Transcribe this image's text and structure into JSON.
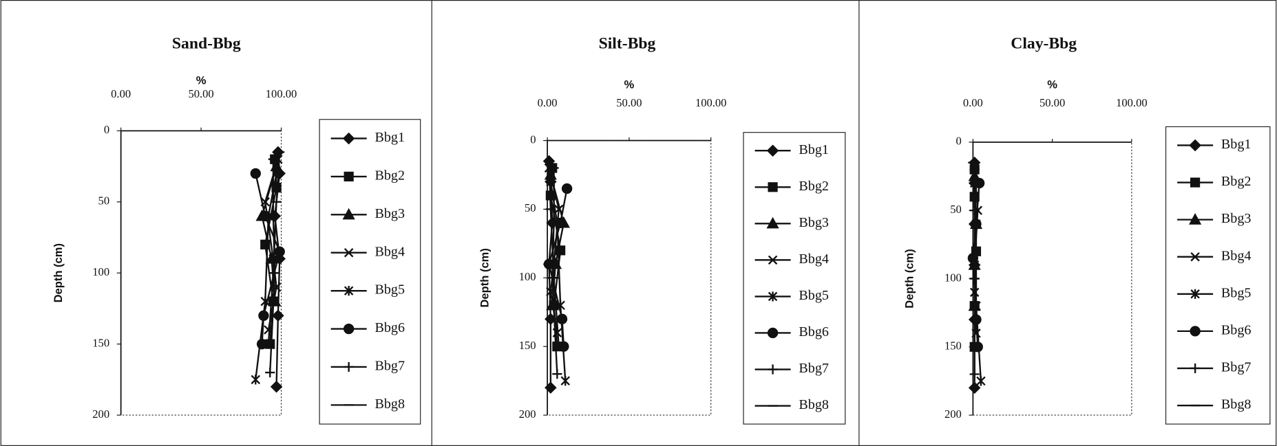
{
  "chart_data": [
    {
      "type": "line",
      "title": "Sand-Bbg",
      "x_label": "%",
      "y_label": "Depth (cm)",
      "x_axis_position": "top",
      "y_reversed": true,
      "xlim": [
        0,
        100
      ],
      "xticks": [
        {
          "value": 0,
          "label": "0.00"
        },
        {
          "value": 50,
          "label": "50.00"
        },
        {
          "value": 100,
          "label": "100.00"
        }
      ],
      "ylim": [
        0,
        200
      ],
      "yticks": [
        0,
        50,
        100,
        150,
        200
      ],
      "series": [
        {
          "name": "Bbg1",
          "color": "#111111",
          "marker": "diamond",
          "x": [
            98,
            99,
            96,
            99,
            98,
            97
          ],
          "y": [
            15,
            30,
            60,
            90,
            130,
            180
          ]
        },
        {
          "name": "Bbg2",
          "color": "#111111",
          "marker": "square",
          "x": [
            96,
            97,
            90,
            95,
            93
          ],
          "y": [
            20,
            40,
            80,
            120,
            150
          ]
        },
        {
          "name": "Bbg3",
          "color": "#111111",
          "marker": "triangle",
          "x": [
            97,
            88,
            94,
            96
          ],
          "y": [
            25,
            60,
            90,
            120
          ]
        },
        {
          "name": "Bbg4",
          "color": "#111111",
          "marker": "x",
          "x": [
            98,
            90,
            95,
            97,
            92
          ],
          "y": [
            20,
            50,
            90,
            110,
            140
          ]
        },
        {
          "name": "Bbg5",
          "color": "#111111",
          "marker": "asterisk",
          "x": [
            97,
            92,
            90,
            84
          ],
          "y": [
            30,
            60,
            120,
            175
          ]
        },
        {
          "name": "Bbg6",
          "color": "#111111",
          "marker": "circle",
          "x": [
            84,
            90,
            99,
            89,
            88
          ],
          "y": [
            30,
            60,
            85,
            130,
            150
          ]
        },
        {
          "name": "Bbg7",
          "color": "#111111",
          "marker": "plus",
          "x": [
            95,
            95,
            96,
            93
          ],
          "y": [
            20,
            60,
            100,
            170
          ]
        },
        {
          "name": "Bbg8",
          "color": "#111111",
          "marker": "dash",
          "x": [
            99,
            97,
            95,
            92
          ],
          "y": [
            15,
            50,
            100,
            150
          ]
        }
      ]
    },
    {
      "type": "line",
      "title": "Silt-Bbg",
      "x_label": "%",
      "y_label": "Depth (cm)",
      "x_axis_position": "top",
      "y_reversed": true,
      "xlim": [
        0,
        100
      ],
      "xticks": [
        {
          "value": 0,
          "label": "0.00"
        },
        {
          "value": 50,
          "label": "50.00"
        },
        {
          "value": 100,
          "label": "100.00"
        }
      ],
      "ylim": [
        0,
        200
      ],
      "yticks": [
        0,
        50,
        100,
        150,
        200
      ],
      "series": [
        {
          "name": "Bbg1",
          "color": "#111111",
          "marker": "diamond",
          "x": [
            1,
            2,
            3,
            1,
            2,
            2
          ],
          "y": [
            15,
            30,
            60,
            90,
            130,
            180
          ]
        },
        {
          "name": "Bbg2",
          "color": "#111111",
          "marker": "square",
          "x": [
            3,
            2,
            8,
            4,
            6
          ],
          "y": [
            20,
            40,
            80,
            120,
            150
          ]
        },
        {
          "name": "Bbg3",
          "color": "#111111",
          "marker": "triangle",
          "x": [
            2,
            10,
            5,
            3
          ],
          "y": [
            25,
            60,
            90,
            120
          ]
        },
        {
          "name": "Bbg4",
          "color": "#111111",
          "marker": "x",
          "x": [
            1,
            7,
            4,
            2,
            6
          ],
          "y": [
            20,
            50,
            90,
            110,
            140
          ]
        },
        {
          "name": "Bbg5",
          "color": "#111111",
          "marker": "asterisk",
          "x": [
            2,
            6,
            8,
            11
          ],
          "y": [
            30,
            60,
            120,
            175
          ]
        },
        {
          "name": "Bbg6",
          "color": "#111111",
          "marker": "circle",
          "x": [
            12,
            8,
            1,
            9,
            10
          ],
          "y": [
            35,
            60,
            90,
            130,
            150
          ]
        },
        {
          "name": "Bbg7",
          "color": "#111111",
          "marker": "plus",
          "x": [
            4,
            4,
            3,
            6
          ],
          "y": [
            20,
            60,
            100,
            170
          ]
        },
        {
          "name": "Bbg8",
          "color": "#111111",
          "marker": "dash",
          "x": [
            1,
            2,
            4,
            7
          ],
          "y": [
            15,
            50,
            100,
            150
          ]
        }
      ]
    },
    {
      "type": "line",
      "title": "Clay-Bbg",
      "x_label": "%",
      "y_label": "Depth (cm)",
      "x_axis_position": "top",
      "y_reversed": true,
      "xlim": [
        0,
        100
      ],
      "xticks": [
        {
          "value": 0,
          "label": "0.00"
        },
        {
          "value": 50,
          "label": "50.00"
        },
        {
          "value": 100,
          "label": "100.00"
        }
      ],
      "ylim": [
        0,
        200
      ],
      "yticks": [
        0,
        50,
        100,
        150,
        200
      ],
      "series": [
        {
          "name": "Bbg1",
          "color": "#111111",
          "marker": "diamond",
          "x": [
            1,
            1,
            1,
            1,
            1,
            1
          ],
          "y": [
            15,
            30,
            60,
            90,
            130,
            180
          ]
        },
        {
          "name": "Bbg2",
          "color": "#111111",
          "marker": "square",
          "x": [
            1,
            1,
            2,
            1,
            1
          ],
          "y": [
            20,
            40,
            80,
            120,
            150
          ]
        },
        {
          "name": "Bbg3",
          "color": "#111111",
          "marker": "triangle",
          "x": [
            1,
            2,
            1,
            1
          ],
          "y": [
            25,
            60,
            90,
            120
          ]
        },
        {
          "name": "Bbg4",
          "color": "#111111",
          "marker": "x",
          "x": [
            1,
            3,
            1,
            1,
            2
          ],
          "y": [
            20,
            50,
            90,
            110,
            140
          ]
        },
        {
          "name": "Bbg5",
          "color": "#111111",
          "marker": "asterisk",
          "x": [
            1,
            2,
            2,
            5
          ],
          "y": [
            30,
            60,
            120,
            175
          ]
        },
        {
          "name": "Bbg6",
          "color": "#111111",
          "marker": "circle",
          "x": [
            4,
            2,
            0,
            2,
            3
          ],
          "y": [
            30,
            60,
            85,
            130,
            150
          ]
        },
        {
          "name": "Bbg7",
          "color": "#111111",
          "marker": "plus",
          "x": [
            1,
            1,
            1,
            1
          ],
          "y": [
            20,
            60,
            100,
            170
          ]
        },
        {
          "name": "Bbg8",
          "color": "#111111",
          "marker": "dash",
          "x": [
            0,
            1,
            1,
            1
          ],
          "y": [
            15,
            50,
            100,
            150
          ]
        }
      ]
    }
  ]
}
